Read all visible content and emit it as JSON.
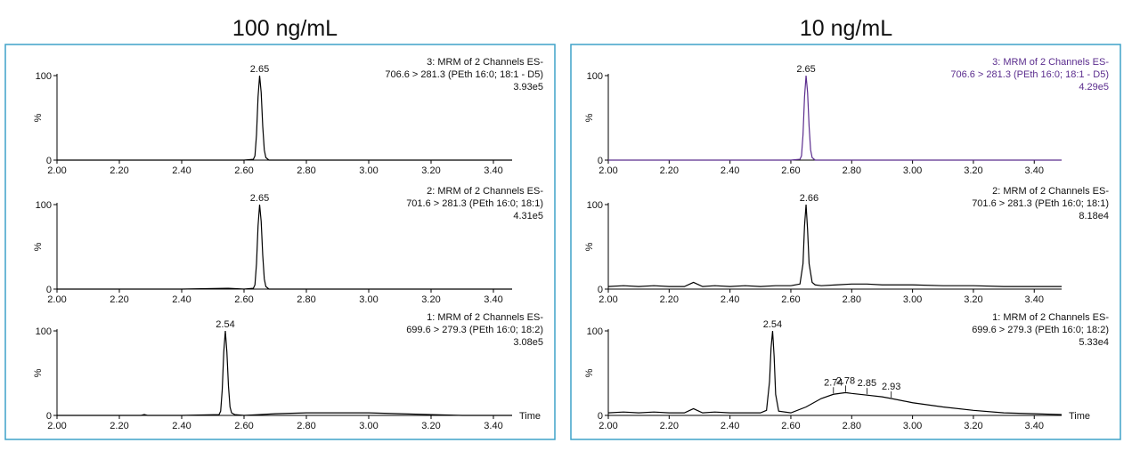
{
  "panel_titles": [
    "100 ng/mL",
    "10 ng/mL"
  ],
  "chart_data": [
    {
      "type": "line",
      "title": "3: MRM of 2 Channels ES-",
      "subtitle": "706.6 > 281.3 (PEth 16:0; 18:1 - D5)",
      "intensity": "3.93e5",
      "y_label": "%",
      "xlim": [
        2.0,
        3.46
      ],
      "ylim": [
        0,
        100
      ],
      "yticks": [
        0,
        100
      ],
      "xticks": [
        {
          "value": 2.0,
          "label": "2.00"
        },
        {
          "value": 2.2,
          "label": "2.20"
        },
        {
          "value": 2.4,
          "label": "2.40"
        },
        {
          "value": 2.6,
          "label": "2.60"
        },
        {
          "value": 2.8,
          "label": "2.80"
        },
        {
          "value": 3.0,
          "label": "3.00"
        },
        {
          "value": 3.2,
          "label": "3.20"
        },
        {
          "value": 3.4,
          "label": "3.40"
        }
      ],
      "x": [
        2.0,
        2.2,
        2.4,
        2.6,
        2.63,
        2.635,
        2.64,
        2.645,
        2.65,
        2.655,
        2.66,
        2.665,
        2.67,
        2.68,
        2.8,
        3.0,
        3.2,
        3.46
      ],
      "series": [
        {
          "color": "#000000",
          "values": [
            0,
            0,
            0,
            0,
            1,
            5,
            30,
            75,
            100,
            80,
            40,
            12,
            3,
            0,
            0,
            0,
            0,
            0
          ]
        }
      ],
      "peaks": [
        {
          "x": 2.65,
          "y": 100
        }
      ]
    },
    {
      "type": "line",
      "title": "2: MRM of 2 Channels ES-",
      "subtitle": "701.6 > 281.3 (PEth 16:0; 18:1)",
      "intensity": "4.31e5",
      "y_label": "%",
      "xlim": [
        2.0,
        3.46
      ],
      "ylim": [
        0,
        100
      ],
      "yticks": [
        0,
        100
      ],
      "xticks": [
        {
          "value": 2.0,
          "label": "2.00"
        },
        {
          "value": 2.2,
          "label": "2.20"
        },
        {
          "value": 2.4,
          "label": "2.40"
        },
        {
          "value": 2.6,
          "label": "2.60"
        },
        {
          "value": 2.8,
          "label": "2.80"
        },
        {
          "value": 3.0,
          "label": "3.00"
        },
        {
          "value": 3.2,
          "label": "3.20"
        },
        {
          "value": 3.4,
          "label": "3.40"
        }
      ],
      "x": [
        2.0,
        2.2,
        2.4,
        2.55,
        2.6,
        2.63,
        2.635,
        2.64,
        2.645,
        2.65,
        2.655,
        2.66,
        2.665,
        2.67,
        2.68,
        2.8,
        3.0,
        3.2,
        3.46
      ],
      "series": [
        {
          "color": "#000000",
          "values": [
            0,
            0,
            0,
            1,
            0,
            1,
            5,
            30,
            75,
            100,
            80,
            40,
            12,
            3,
            0,
            0,
            0,
            0,
            0
          ]
        }
      ],
      "peaks": [
        {
          "x": 2.65,
          "y": 100
        }
      ]
    },
    {
      "type": "line",
      "title": "1: MRM of 2 Channels ES-",
      "subtitle": "699.6 > 279.3 (PEth 16:0; 18:2)",
      "intensity": "3.08e5",
      "y_label": "%",
      "x_label": "Time",
      "xlim": [
        2.0,
        3.46
      ],
      "ylim": [
        0,
        100
      ],
      "yticks": [
        0,
        100
      ],
      "xticks": [
        {
          "value": 2.0,
          "label": "2.00"
        },
        {
          "value": 2.2,
          "label": "2.20"
        },
        {
          "value": 2.4,
          "label": "2.40"
        },
        {
          "value": 2.6,
          "label": "2.60"
        },
        {
          "value": 2.8,
          "label": "2.80"
        },
        {
          "value": 3.0,
          "label": "3.00"
        },
        {
          "value": 3.2,
          "label": "3.20"
        },
        {
          "value": 3.4,
          "label": "3.40"
        }
      ],
      "x": [
        2.0,
        2.2,
        2.27,
        2.28,
        2.29,
        2.4,
        2.52,
        2.525,
        2.53,
        2.535,
        2.54,
        2.545,
        2.55,
        2.555,
        2.56,
        2.57,
        2.6,
        2.65,
        2.7,
        2.8,
        2.9,
        3.0,
        3.1,
        3.2,
        3.3,
        3.46
      ],
      "series": [
        {
          "color": "#000000",
          "values": [
            0,
            0,
            0,
            1,
            0,
            0,
            1,
            5,
            30,
            75,
            100,
            75,
            35,
            10,
            3,
            1,
            0,
            1,
            2,
            3,
            3,
            3,
            2,
            1,
            0,
            0
          ]
        }
      ],
      "peaks": [
        {
          "x": 2.54,
          "y": 100
        }
      ]
    },
    {
      "type": "line",
      "title": "3: MRM of 2 Channels ES-",
      "subtitle": "706.6 > 281.3 (PEth 16:0; 18:1 - D5)",
      "intensity": "4.29e5",
      "y_label": "%",
      "text_color": "#5b2d8e",
      "xlim": [
        2.0,
        3.49
      ],
      "ylim": [
        0,
        100
      ],
      "yticks": [
        0,
        100
      ],
      "xticks": [
        {
          "value": 2.0,
          "label": "2.00"
        },
        {
          "value": 2.2,
          "label": "2.20"
        },
        {
          "value": 2.4,
          "label": "2.40"
        },
        {
          "value": 2.6,
          "label": "2.60"
        },
        {
          "value": 2.8,
          "label": "2.80"
        },
        {
          "value": 3.0,
          "label": "3.00"
        },
        {
          "value": 3.2,
          "label": "3.20"
        },
        {
          "value": 3.4,
          "label": "3.40"
        }
      ],
      "x": [
        2.0,
        2.2,
        2.4,
        2.6,
        2.63,
        2.635,
        2.64,
        2.645,
        2.65,
        2.655,
        2.66,
        2.665,
        2.67,
        2.68,
        2.8,
        3.0,
        3.2,
        3.49
      ],
      "series": [
        {
          "color": "#5b2d8e",
          "values": [
            0,
            0,
            0,
            0,
            1,
            5,
            30,
            75,
            100,
            80,
            40,
            12,
            3,
            0,
            0,
            0,
            0,
            0
          ]
        }
      ],
      "peaks": [
        {
          "x": 2.65,
          "y": 100
        }
      ]
    },
    {
      "type": "line",
      "title": "2: MRM of 2 Channels ES-",
      "subtitle": "701.6 > 281.3 (PEth 16:0; 18:1)",
      "intensity": "8.18e4",
      "y_label": "%",
      "xlim": [
        2.0,
        3.49
      ],
      "ylim": [
        0,
        100
      ],
      "yticks": [
        0,
        100
      ],
      "xticks": [
        {
          "value": 2.0,
          "label": "2.00"
        },
        {
          "value": 2.2,
          "label": "2.20"
        },
        {
          "value": 2.4,
          "label": "2.40"
        },
        {
          "value": 2.6,
          "label": "2.60"
        },
        {
          "value": 2.8,
          "label": "2.80"
        },
        {
          "value": 3.0,
          "label": "3.00"
        },
        {
          "value": 3.2,
          "label": "3.20"
        },
        {
          "value": 3.4,
          "label": "3.40"
        }
      ],
      "x": [
        2.0,
        2.05,
        2.1,
        2.15,
        2.2,
        2.25,
        2.28,
        2.31,
        2.35,
        2.4,
        2.45,
        2.5,
        2.55,
        2.6,
        2.63,
        2.64,
        2.645,
        2.65,
        2.655,
        2.66,
        2.67,
        2.68,
        2.7,
        2.75,
        2.8,
        2.85,
        2.9,
        3.0,
        3.1,
        3.2,
        3.3,
        3.4,
        3.49
      ],
      "series": [
        {
          "color": "#000000",
          "values": [
            3,
            4,
            3,
            4,
            3,
            3,
            8,
            3,
            4,
            3,
            4,
            3,
            4,
            4,
            6,
            30,
            75,
            100,
            70,
            30,
            8,
            5,
            4,
            5,
            6,
            6,
            5,
            5,
            4,
            4,
            3,
            3,
            3
          ]
        }
      ],
      "peaks": [
        {
          "x": 2.66,
          "y": 100
        }
      ]
    },
    {
      "type": "line",
      "title": "1: MRM of 2 Channels ES-",
      "subtitle": "699.6 > 279.3 (PEth 16:0; 18:2)",
      "intensity": "5.33e4",
      "y_label": "%",
      "x_label": "Time",
      "xlim": [
        2.0,
        3.49
      ],
      "ylim": [
        0,
        100
      ],
      "yticks": [
        0,
        100
      ],
      "xticks": [
        {
          "value": 2.0,
          "label": "2.00"
        },
        {
          "value": 2.2,
          "label": "2.20"
        },
        {
          "value": 2.4,
          "label": "2.40"
        },
        {
          "value": 2.6,
          "label": "2.60"
        },
        {
          "value": 2.8,
          "label": "2.80"
        },
        {
          "value": 3.0,
          "label": "3.00"
        },
        {
          "value": 3.2,
          "label": "3.20"
        },
        {
          "value": 3.4,
          "label": "3.40"
        }
      ],
      "x": [
        2.0,
        2.05,
        2.1,
        2.15,
        2.2,
        2.25,
        2.28,
        2.31,
        2.35,
        2.4,
        2.45,
        2.5,
        2.52,
        2.53,
        2.535,
        2.54,
        2.545,
        2.55,
        2.56,
        2.6,
        2.65,
        2.7,
        2.74,
        2.78,
        2.8,
        2.85,
        2.9,
        2.93,
        3.0,
        3.1,
        3.2,
        3.3,
        3.4,
        3.49
      ],
      "series": [
        {
          "color": "#000000",
          "values": [
            3,
            4,
            3,
            4,
            3,
            3,
            8,
            3,
            4,
            3,
            3,
            3,
            6,
            40,
            80,
            100,
            70,
            25,
            5,
            3,
            10,
            20,
            25,
            27,
            26,
            24,
            22,
            20,
            15,
            10,
            6,
            3,
            2,
            1
          ]
        }
      ],
      "peaks": [
        {
          "x": 2.54,
          "y": 100
        },
        {
          "x": 2.74,
          "y": 25
        },
        {
          "x": 2.78,
          "y": 27
        },
        {
          "x": 2.85,
          "y": 24
        },
        {
          "x": 2.93,
          "y": 20
        }
      ]
    }
  ]
}
